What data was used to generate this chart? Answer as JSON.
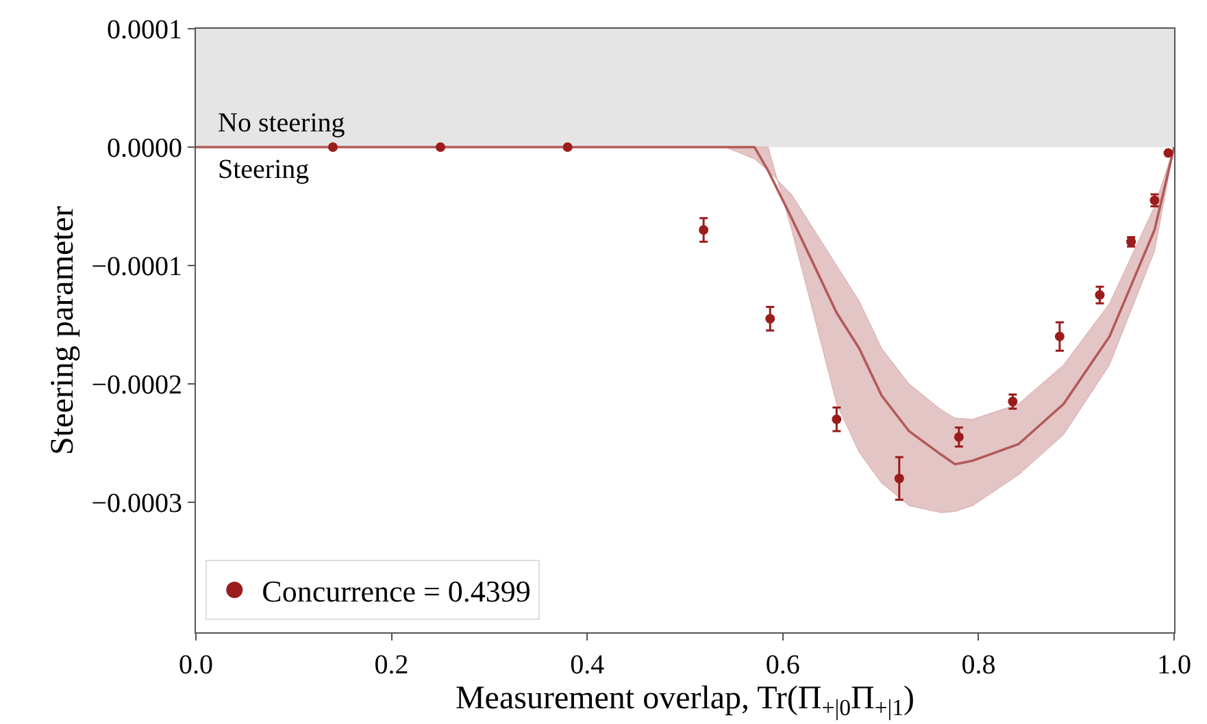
{
  "chart_data": {
    "type": "scatter",
    "xlabel": "Measurement overlap, Tr(Π$_{+|0}$Π$_{+|1}$)",
    "ylabel": "Steering parameter",
    "xlim": [
      0,
      1
    ],
    "ylim": [
      -0.00041,
      0.0001
    ],
    "xticks": [
      {
        "value": 0,
        "label": "0.0"
      },
      {
        "value": 0.2,
        "label": "0.2"
      },
      {
        "value": 0.4,
        "label": "0.4"
      },
      {
        "value": 0.6,
        "label": "0.6"
      },
      {
        "value": 0.8,
        "label": "0.8"
      },
      {
        "value": 1,
        "label": "1.0"
      }
    ],
    "yticks": [
      {
        "value": 0.0001,
        "label": "0.0001"
      },
      {
        "value": 0,
        "label": "0.0000"
      },
      {
        "value": -0.0001,
        "label": "−0.0001"
      },
      {
        "value": -0.0002,
        "label": "−0.0002"
      },
      {
        "value": -0.0003,
        "label": "−0.0003"
      }
    ],
    "series": [
      {
        "name": "Concurrence = 0.4399",
        "color": "#9b1c1c",
        "marker": "circle",
        "x": [
          0.14,
          0.25,
          0.38,
          0.519,
          0.587,
          0.655,
          0.719,
          0.78,
          0.835,
          0.883,
          0.924,
          0.956,
          0.98,
          0.994
        ],
        "values": [
          0,
          0,
          0,
          -7e-05,
          -0.000145,
          -0.00023,
          -0.00028,
          -0.000245,
          -0.000215,
          -0.00016,
          -0.000125,
          -8e-05,
          -4.5e-05,
          -5e-06
        ],
        "errors": [
          null,
          null,
          null,
          1e-05,
          1e-05,
          1e-05,
          1.8e-05,
          8e-06,
          6e-06,
          1.2e-05,
          7e-06,
          4e-06,
          5e-06,
          null
        ]
      },
      {
        "type": "line",
        "color": "#b35a5a",
        "line_style": "solid",
        "x": [
          0,
          0.541,
          0.571,
          0.585,
          0.609,
          0.632,
          0.655,
          0.678,
          0.701,
          0.729,
          0.762,
          0.776,
          0.794,
          0.841,
          0.887,
          0.934,
          0.98,
          1.0
        ],
        "values": [
          0,
          0,
          0,
          -2e-05,
          -6e-05,
          -0.0001,
          -0.00014,
          -0.00017,
          -0.00021,
          -0.00024,
          -0.00026,
          -0.000268,
          -0.000265,
          -0.000251,
          -0.000217,
          -0.00016,
          -7e-05,
          0
        ],
        "upper": [
          0,
          0,
          -1e-05,
          -2e-05,
          -4e-05,
          -7e-05,
          -0.0001,
          -0.00013,
          -0.00017,
          -0.0002,
          -0.000222,
          -0.000229,
          -0.00023,
          -0.000217,
          -0.000184,
          -0.000132,
          -5e-05,
          0
        ],
        "lower": [
          0,
          0,
          0,
          0,
          -7e-05,
          -0.000143,
          -0.000217,
          -0.000258,
          -0.000284,
          -0.000303,
          -0.000309,
          -0.000308,
          -0.000303,
          -0.000277,
          -0.000243,
          -0.000184,
          -8.8e-05,
          0
        ]
      }
    ],
    "bands": [
      {
        "axis": "y",
        "from": 0,
        "to": 0.0001,
        "label": "No steering",
        "color": "#e5e5e5"
      }
    ],
    "annotations": [
      "Steering"
    ],
    "legend": "bottom left",
    "grid": false
  }
}
